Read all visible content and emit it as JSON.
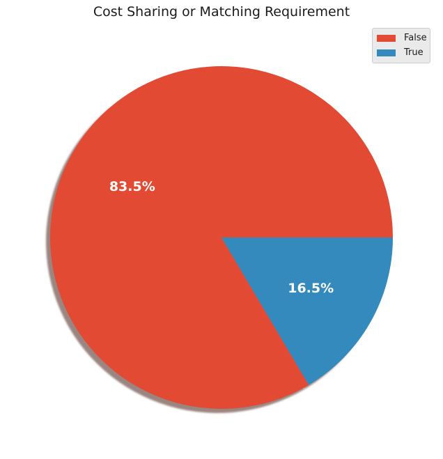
{
  "chart_data": {
    "type": "pie",
    "title": "Cost Sharing or Matching Requirement",
    "categories": [
      "False",
      "True"
    ],
    "values": [
      83.5,
      16.5
    ],
    "data_labels": [
      "83.5%",
      "16.5%"
    ],
    "colors": [
      "#E24A33",
      "#348ABD"
    ],
    "shadow": true,
    "start_angle_deg": 0,
    "direction": "counterclockwise",
    "legend": {
      "placement": "top-right",
      "entries": [
        "False",
        "True"
      ]
    }
  }
}
